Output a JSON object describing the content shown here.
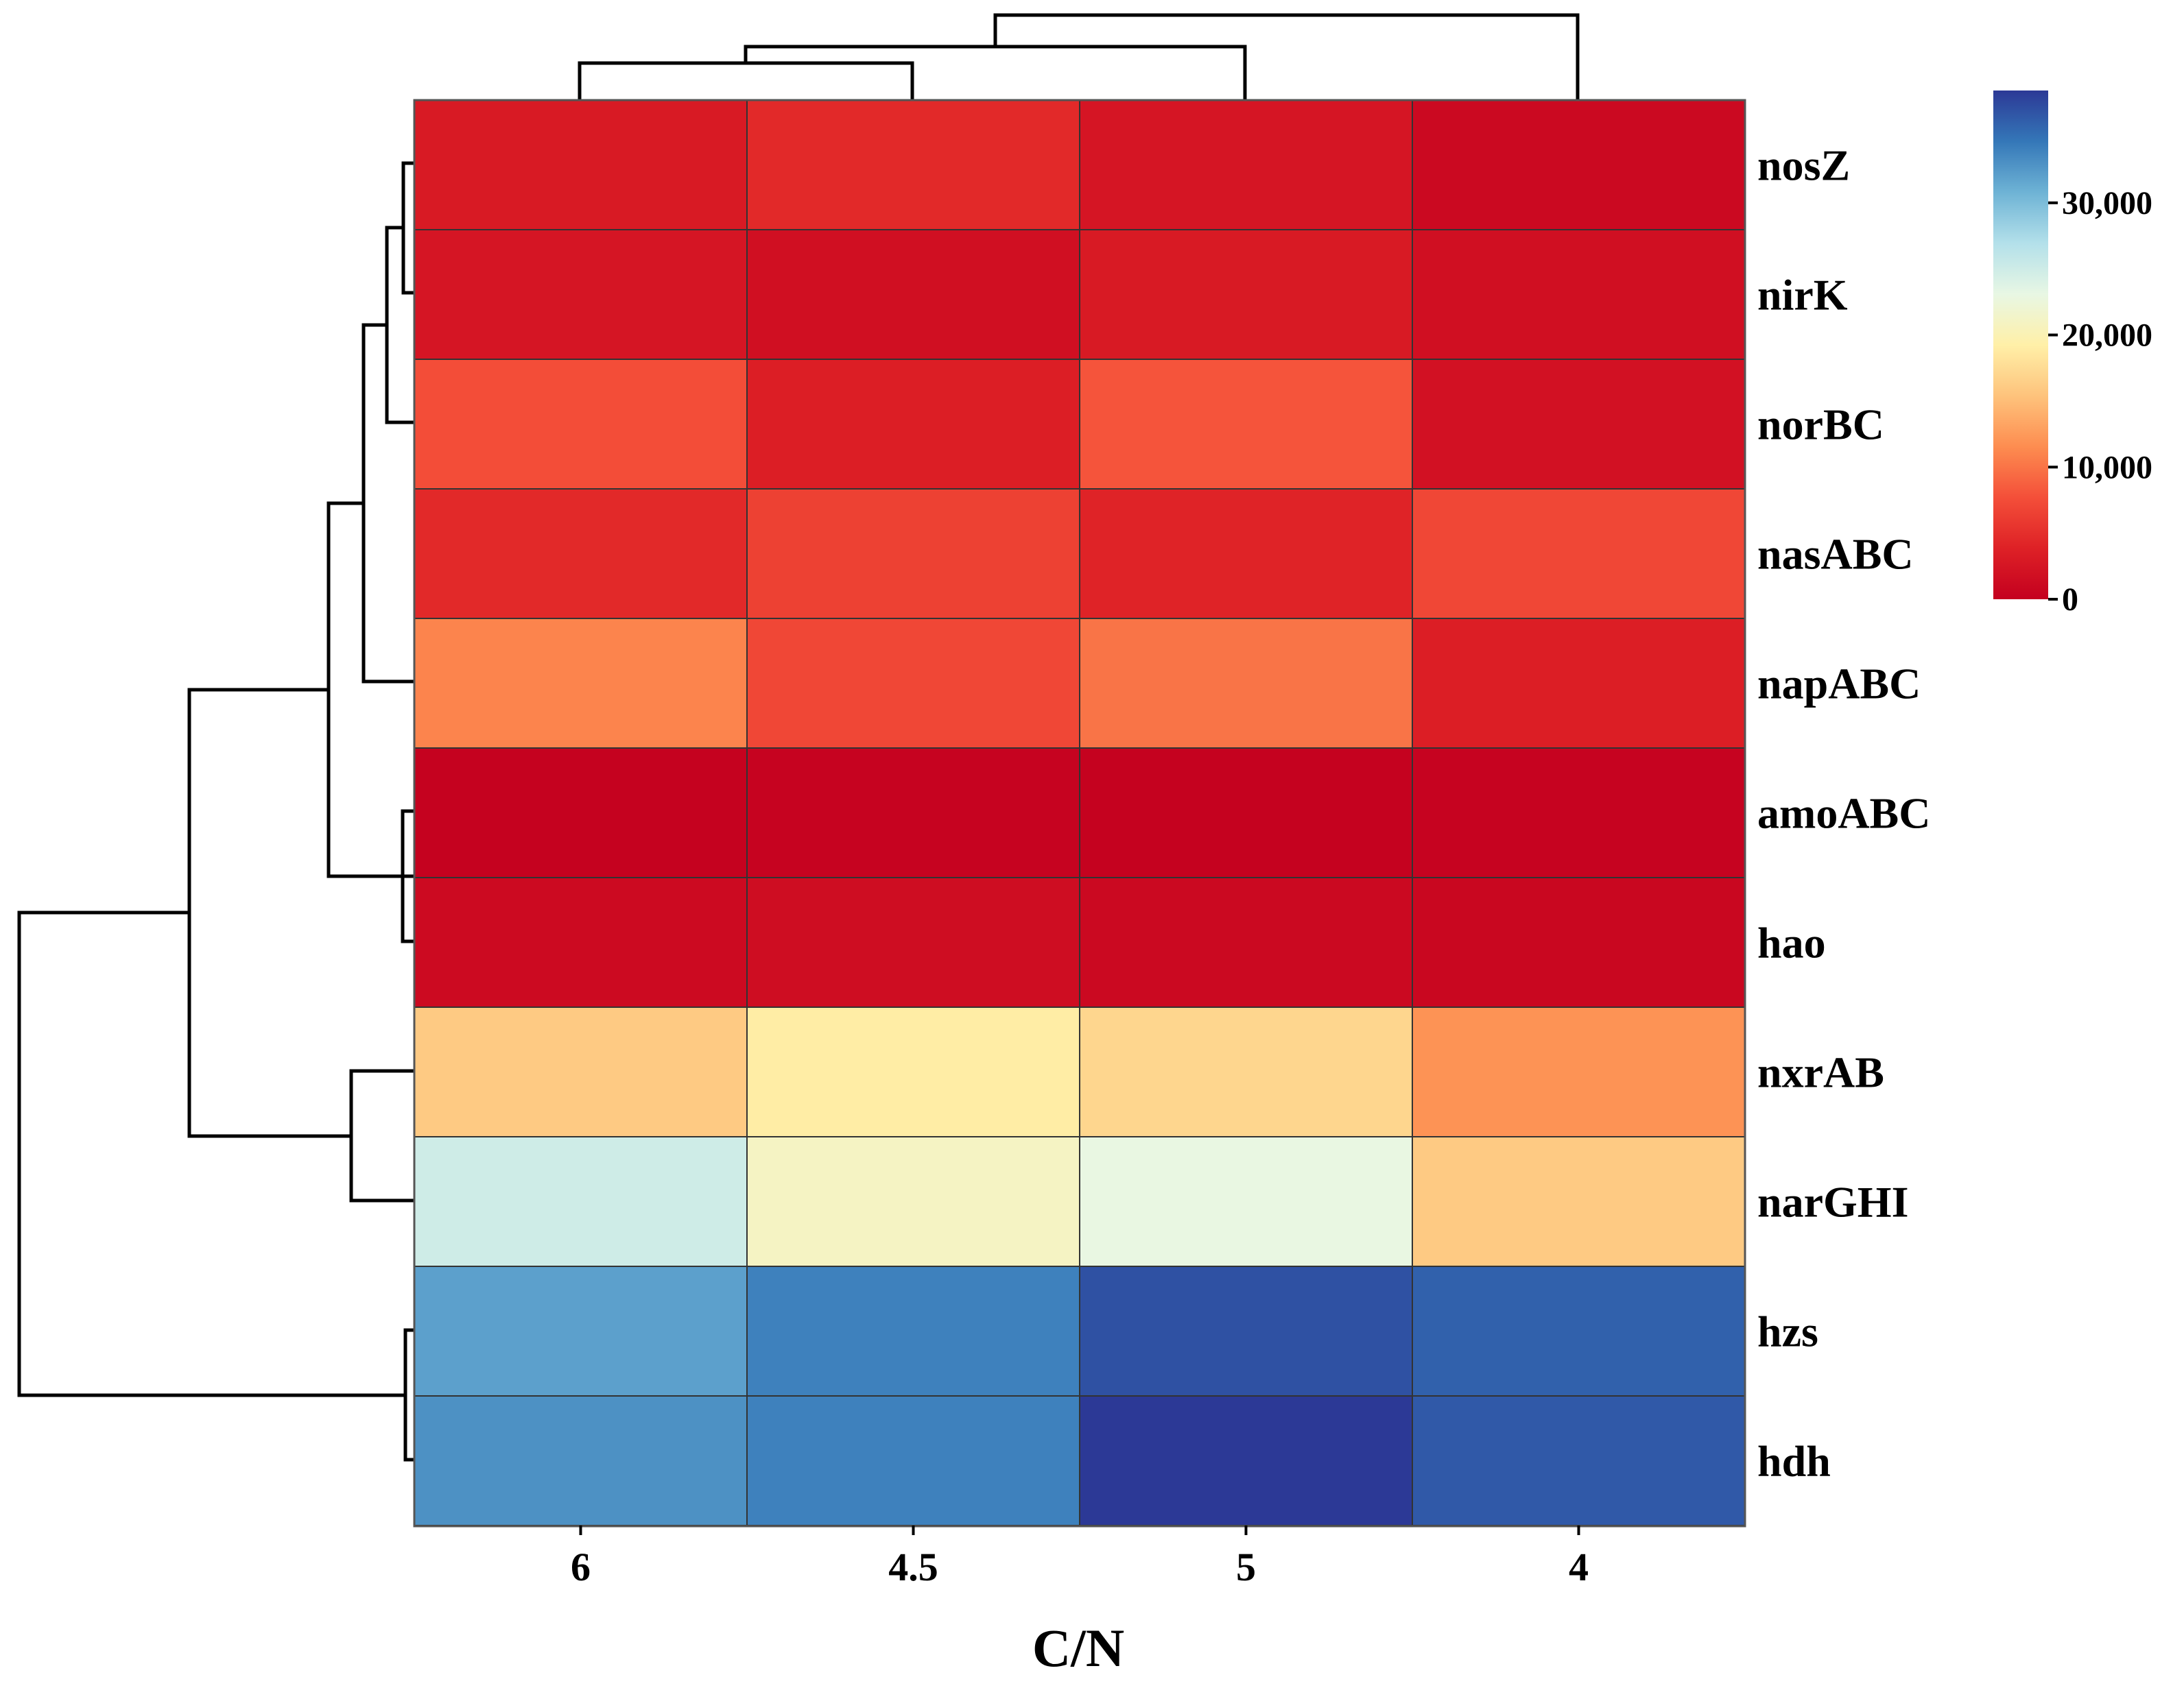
{
  "chart_data": {
    "type": "heatmap",
    "title": "",
    "xlabel": "C/N",
    "ylabel": "",
    "columns": [
      "6",
      "4.5",
      "5",
      "4"
    ],
    "rows": [
      "nosZ",
      "nirK",
      "norBC",
      "nasABC",
      "napABC",
      "amoABC",
      "hao",
      "nxrAB",
      "narGHI",
      "hzs",
      "hdh"
    ],
    "values": [
      [
        3000,
        4500,
        2500,
        1000
      ],
      [
        2500,
        1800,
        3000,
        1800
      ],
      [
        7500,
        3500,
        8000,
        2000
      ],
      [
        4500,
        6500,
        4000,
        7000
      ],
      [
        11000,
        7000,
        10000,
        3500
      ],
      [
        200,
        300,
        200,
        300
      ],
      [
        1200,
        1500,
        1000,
        800
      ],
      [
        16000,
        19000,
        17000,
        12000
      ],
      [
        25000,
        21000,
        23000,
        16000
      ],
      [
        32000,
        34000,
        37000,
        36000
      ],
      [
        33000,
        34000,
        38500,
        36500
      ]
    ],
    "colorbar": {
      "min": 0,
      "max": 38500,
      "ticks": [
        0,
        10000,
        20000,
        30000
      ],
      "tick_labels": [
        "0",
        "10,000",
        "20,000",
        "30,000"
      ],
      "colormap": "RdYlBu"
    },
    "dendrogram": {
      "columns_clustered": true,
      "rows_clustered": true
    }
  }
}
